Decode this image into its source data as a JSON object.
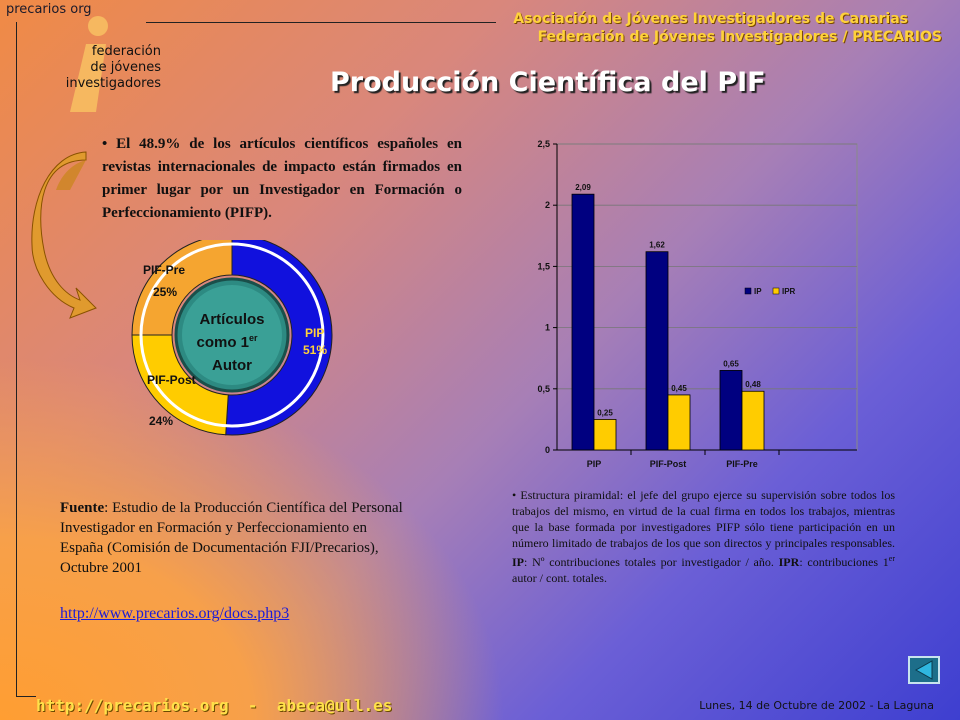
{
  "header": {
    "brand": "precarios org",
    "logo_lines": [
      "federación",
      "de jóvenes",
      "investigadores"
    ],
    "assoc_line1": "Asociación de Jóvenes Investigadores de Canarias",
    "assoc_line2": "Federación de Jóvenes Investigadores / PRECARIOS",
    "title": "Producción Científica del PIF"
  },
  "main": {
    "bullet_text": "El 48.9% de los artículos científicos españoles en revistas internacionales de impacto están firmados en primer lugar por un Investigador en Formación o Perfeccionamiento (PIFP).",
    "donut_center": {
      "line1": "Artículos",
      "line2_pre": "como 1",
      "line2_sup": "er",
      "line3": "Autor"
    },
    "donut": {
      "slices": [
        {
          "label": "PIP",
          "pct_label": "51%",
          "value": 51,
          "color": "#1111dd"
        },
        {
          "label": "PIF-Post",
          "pct_label": "24%",
          "value": 24,
          "color": "#ffcc00"
        },
        {
          "label": "PIF-Pre",
          "pct_label": "25%",
          "value": 25,
          "color": "#f5a530"
        }
      ]
    },
    "source_label": "Fuente",
    "source_text": ": Estudio de la Producción Científica del Personal Investigador en Formación y Perfeccionamiento en España (Comisión de Documentación FJI/Precarios), Octubre 2001",
    "source_link": "http://www.precarios.org/docs.php3",
    "note": {
      "intro": "Estructura piramidal: el jefe del grupo ejerce su supervisión sobre todos los trabajos del mismo, en virtud de la cual firma en todos los trabajos, mientras que la base formada por investigadores PIFP sólo tiene participación en un número limitado de trabajos de los que son directos y principales responsables. ",
      "ip_label": "IP",
      "ip_text": ": Nº contribuciones totales por investigador / año. ",
      "ipr_label": "IPR",
      "ipr_text_pre": ": contribuciones 1",
      "ipr_sup": "er",
      "ipr_text_post": " autor / cont. totales."
    }
  },
  "chart_data": {
    "type": "bar",
    "categories": [
      "PIP",
      "PIF-Post",
      "PIF-Pre"
    ],
    "series": [
      {
        "name": "IP",
        "values": [
          2.09,
          1.62,
          0.65
        ],
        "labels": [
          "2,09",
          "1,62",
          "0,65"
        ],
        "color": "#000080"
      },
      {
        "name": "IPR",
        "values": [
          0.25,
          0.45,
          0.48
        ],
        "labels": [
          "0,25",
          "0,45",
          "0,48"
        ],
        "color": "#ffcc00"
      }
    ],
    "yticks": [
      "0",
      "0,5",
      "1",
      "1,5",
      "2",
      "2,5"
    ],
    "ylim": [
      0,
      2.5
    ],
    "grid": true,
    "legend": "right"
  },
  "footer": {
    "link": "http://precarios.org  -  abeca@ull.es",
    "date": "Lunes, 14 de Octubre de 2002 - La Laguna"
  },
  "colors": {
    "accent": "#ffd23a",
    "link": "#1b1bd8",
    "nav_button": "#1d6e8a"
  }
}
